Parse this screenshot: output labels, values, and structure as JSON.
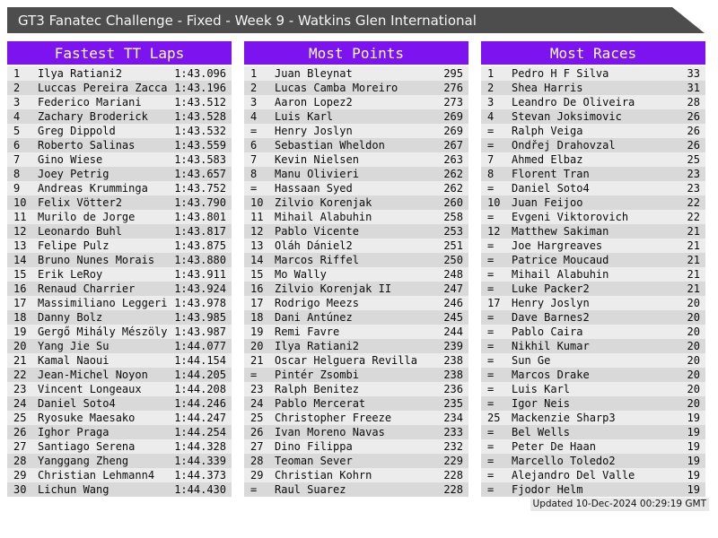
{
  "title_bar": {
    "title": "GT3 Fanatec Challenge - Fixed - Week 9 - Watkins Glen International"
  },
  "footer": {
    "updated": "Updated 10-Dec-2024 00:29:19 GMT"
  },
  "colors": {
    "accent_purple": "#7d14f0",
    "titlebar_gray": "#4d4d4d",
    "row_odd": "#ececec",
    "row_even": "#d9d9d9",
    "footer_bg": "#e9e9e9"
  },
  "tables": [
    {
      "title": "Fastest TT Laps",
      "rows": [
        [
          "1",
          "Ilya Ratiani2",
          "1:43.096"
        ],
        [
          "2",
          "Luccas Pereira Zacca",
          "1:43.196"
        ],
        [
          "3",
          "Federico Mariani",
          "1:43.512"
        ],
        [
          "4",
          "Zachary Broderick",
          "1:43.528"
        ],
        [
          "5",
          "Greg Dippold",
          "1:43.532"
        ],
        [
          "6",
          "Roberto Salinas",
          "1:43.559"
        ],
        [
          "7",
          "Gino Wiese",
          "1:43.583"
        ],
        [
          "8",
          "Joey Petrig",
          "1:43.657"
        ],
        [
          "9",
          "Andreas Krumminga",
          "1:43.752"
        ],
        [
          "10",
          "Felix Vötter2",
          "1:43.790"
        ],
        [
          "11",
          "Murilo de Jorge",
          "1:43.801"
        ],
        [
          "12",
          "Leonardo Buhl",
          "1:43.817"
        ],
        [
          "13",
          "Felipe Pulz",
          "1:43.875"
        ],
        [
          "14",
          "Bruno Nunes Morais",
          "1:43.880"
        ],
        [
          "15",
          "Erik LeRoy",
          "1:43.911"
        ],
        [
          "16",
          "Renaud Charrier",
          "1:43.924"
        ],
        [
          "17",
          "Massimiliano Leggeri",
          "1:43.978"
        ],
        [
          "18",
          "Danny Bolz",
          "1:43.985"
        ],
        [
          "19",
          "Gergő Mihály Mészöly",
          "1:43.987"
        ],
        [
          "20",
          "Yang Jie Su",
          "1:44.077"
        ],
        [
          "21",
          "Kamal Naoui",
          "1:44.154"
        ],
        [
          "22",
          "Jean-Michel Noyon",
          "1:44.205"
        ],
        [
          "23",
          "Vincent Longeaux",
          "1:44.208"
        ],
        [
          "24",
          "Daniel Soto4",
          "1:44.246"
        ],
        [
          "25",
          "Ryosuke Maesako",
          "1:44.247"
        ],
        [
          "26",
          "Ighor Praga",
          "1:44.254"
        ],
        [
          "27",
          "Santiago Serena",
          "1:44.328"
        ],
        [
          "28",
          "Yanggang Zheng",
          "1:44.339"
        ],
        [
          "29",
          "Christian Lehmann4",
          "1:44.373"
        ],
        [
          "30",
          "Lichun Wang",
          "1:44.430"
        ]
      ]
    },
    {
      "title": "Most Points",
      "rows": [
        [
          "1",
          "Juan Bleynat",
          "295"
        ],
        [
          "2",
          "Lucas Camba Moreiro",
          "276"
        ],
        [
          "3",
          "Aaron Lopez2",
          "273"
        ],
        [
          "4",
          "Luis Karl",
          "269"
        ],
        [
          "=",
          "Henry Joslyn",
          "269"
        ],
        [
          "6",
          "Sebastian Wheldon",
          "267"
        ],
        [
          "7",
          "Kevin Nielsen",
          "263"
        ],
        [
          "8",
          "Manu Olivieri",
          "262"
        ],
        [
          "=",
          "Hassaan Syed",
          "262"
        ],
        [
          "10",
          "Zilvio Korenjak",
          "260"
        ],
        [
          "11",
          "Mihail Alabuhin",
          "258"
        ],
        [
          "12",
          "Pablo Vicente",
          "253"
        ],
        [
          "13",
          "Oláh Dániel2",
          "251"
        ],
        [
          "14",
          "Marcos Riffel",
          "250"
        ],
        [
          "15",
          "Mo Wally",
          "248"
        ],
        [
          "16",
          "Zilvio Korenjak II",
          "247"
        ],
        [
          "17",
          "Rodrigo Meezs",
          "246"
        ],
        [
          "18",
          "Dani Antúnez",
          "245"
        ],
        [
          "19",
          "Remi Favre",
          "244"
        ],
        [
          "20",
          "Ilya Ratiani2",
          "239"
        ],
        [
          "21",
          "Oscar Helguera Revilla",
          "238"
        ],
        [
          "=",
          "Pintér Zsombi",
          "238"
        ],
        [
          "23",
          "Ralph Benitez",
          "236"
        ],
        [
          "24",
          "Pablo Mercerat",
          "235"
        ],
        [
          "25",
          "Christopher Freeze",
          "234"
        ],
        [
          "26",
          "Ivan Moreno Navas",
          "233"
        ],
        [
          "27",
          "Dino Filippa",
          "232"
        ],
        [
          "28",
          "Teoman Sever",
          "229"
        ],
        [
          "29",
          "Christian Kohrn",
          "228"
        ],
        [
          "=",
          "Raul Suarez",
          "228"
        ]
      ]
    },
    {
      "title": "Most Races",
      "rows": [
        [
          "1",
          "Pedro H F Silva",
          "33"
        ],
        [
          "2",
          "Shea Harris",
          "31"
        ],
        [
          "3",
          "Leandro De Oliveira",
          "28"
        ],
        [
          "4",
          "Stevan Joksimovic",
          "26"
        ],
        [
          "=",
          "Ralph Veiga",
          "26"
        ],
        [
          "=",
          "Ondřej Drahovzal",
          "26"
        ],
        [
          "7",
          "Ahmed Elbaz",
          "25"
        ],
        [
          "8",
          "Florent Tran",
          "23"
        ],
        [
          "=",
          "Daniel Soto4",
          "23"
        ],
        [
          "10",
          "Juan Feijoo",
          "22"
        ],
        [
          "=",
          "Evgeni Viktorovich",
          "22"
        ],
        [
          "12",
          "Matthew Sakiman",
          "21"
        ],
        [
          "=",
          "Joe Hargreaves",
          "21"
        ],
        [
          "=",
          "Patrice Moucaud",
          "21"
        ],
        [
          "=",
          "Mihail Alabuhin",
          "21"
        ],
        [
          "=",
          "Luke Packer2",
          "21"
        ],
        [
          "17",
          "Henry Joslyn",
          "20"
        ],
        [
          "=",
          "Dave Barnes2",
          "20"
        ],
        [
          "=",
          "Pablo Caira",
          "20"
        ],
        [
          "=",
          "Nikhil Kumar",
          "20"
        ],
        [
          "=",
          "Sun Ge",
          "20"
        ],
        [
          "=",
          "Marcos Drake",
          "20"
        ],
        [
          "=",
          "Luis Karl",
          "20"
        ],
        [
          "=",
          "Igor Neis",
          "20"
        ],
        [
          "25",
          "Mackenzie Sharp3",
          "19"
        ],
        [
          "=",
          "Bel Wells",
          "19"
        ],
        [
          "=",
          "Peter De Haan",
          "19"
        ],
        [
          "=",
          "Marcello Toledo2",
          "19"
        ],
        [
          "=",
          "Alejandro Del Valle",
          "19"
        ],
        [
          "=",
          "Fjodor Helm",
          "19"
        ]
      ]
    }
  ]
}
